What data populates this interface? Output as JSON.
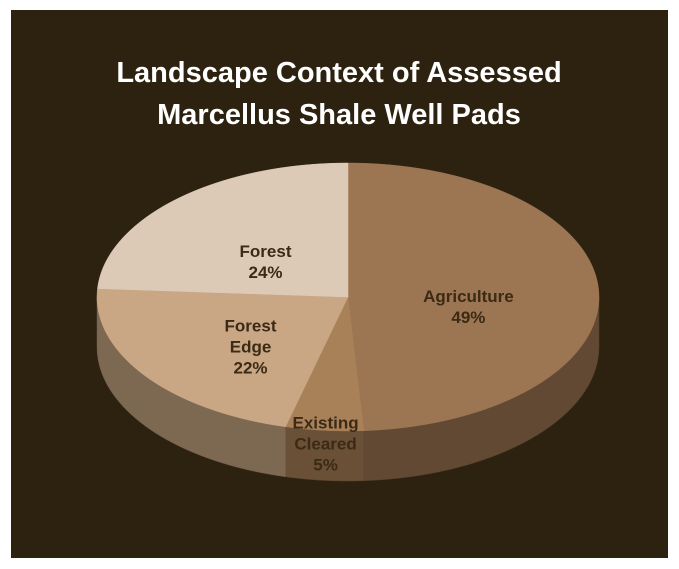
{
  "chart_data": {
    "type": "pie",
    "title": "Landscape Context of Assessed Marcellus Shale Well Pads",
    "categories": [
      "Agriculture",
      "Existing Cleared",
      "Forest Edge",
      "Forest"
    ],
    "values": [
      49,
      5,
      22,
      24
    ],
    "value_labels": [
      "49%",
      "5%",
      "22%",
      "24%"
    ],
    "colors": [
      "#9c7552",
      "#a98159",
      "#c9a784",
      "#ddcab6"
    ]
  }
}
